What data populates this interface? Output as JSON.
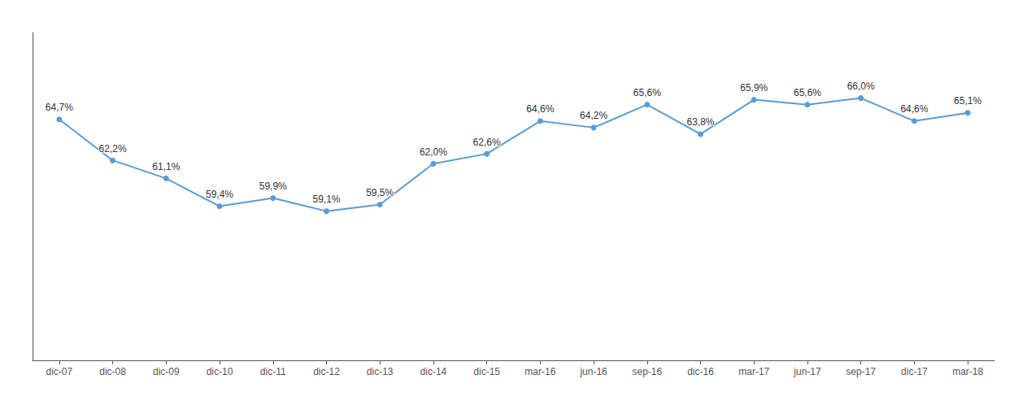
{
  "chart_data": {
    "type": "line",
    "categories": [
      "dic-07",
      "dic-08",
      "dic-09",
      "dic-10",
      "dic-11",
      "dic-12",
      "dic-13",
      "dic-14",
      "dic-15",
      "mar-16",
      "jun-16",
      "sep-16",
      "dic-16",
      "mar-17",
      "jun-17",
      "sep-17",
      "dic-17",
      "mar-18"
    ],
    "values": [
      64.7,
      62.2,
      61.1,
      59.4,
      59.9,
      59.1,
      59.5,
      62.0,
      62.6,
      64.6,
      64.2,
      65.6,
      63.8,
      65.9,
      65.6,
      66.0,
      64.6,
      65.1
    ],
    "value_labels": [
      "64,7%",
      "62,2%",
      "61,1%",
      "59,4%",
      "59,9%",
      "59,1%",
      "59,5%",
      "62,0%",
      "62,6%",
      "64,6%",
      "64,2%",
      "65,6%",
      "63,8%",
      "65,9%",
      "65,6%",
      "66,0%",
      "64,6%",
      "65,1%"
    ],
    "color": "#5B9BD5",
    "marker": "circle",
    "ylim": [
      50,
      70
    ],
    "grid": false,
    "data_labels": true,
    "tick_labels": "x"
  }
}
